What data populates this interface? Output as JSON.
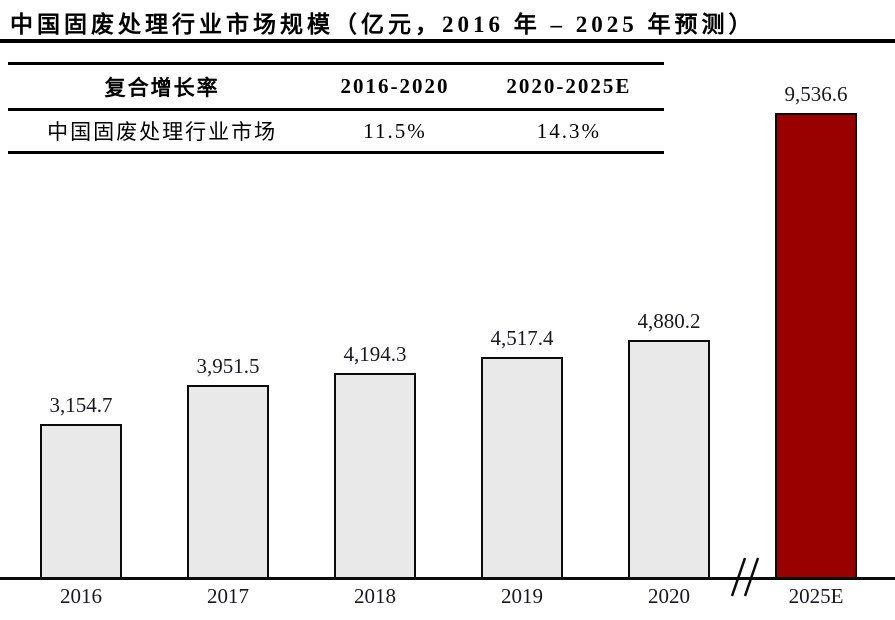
{
  "title": "中国固废处理行业市场规模（亿元，2016 年 – 2025 年预测）",
  "table": {
    "headers": [
      "复合增长率",
      "2016-2020",
      "2020-2025E"
    ],
    "rows": [
      [
        "中国固废处理行业市场",
        "11.5%",
        "14.3%"
      ]
    ]
  },
  "chart_data": {
    "type": "bar",
    "title": "中国固废处理行业市场规模（亿元，2016 年 – 2025 年预测）",
    "categories": [
      "2016",
      "2017",
      "2018",
      "2019",
      "2020",
      "2025E"
    ],
    "values": [
      3154.7,
      3951.5,
      4194.3,
      4517.4,
      4880.2,
      9536.6
    ],
    "value_labels": [
      "3,154.7",
      "3,951.5",
      "4,194.3",
      "4,517.4",
      "4,880.2",
      "9,536.6"
    ],
    "bar_colors": [
      "#e9e9e9",
      "#e9e9e9",
      "#e9e9e9",
      "#e9e9e9",
      "#e9e9e9",
      "#990000"
    ],
    "xlabel": "",
    "ylabel": "",
    "ylim": [
      0,
      9800
    ],
    "grid": false,
    "legend": "none",
    "axis_break_between": [
      "2020",
      "2025E"
    ],
    "cagr_2016_2020": "11.5%",
    "cagr_2020_2025e": "14.3%"
  },
  "colors": {
    "bar_fill": "#e9e9e9",
    "bar_highlight": "#990000",
    "line": "#000000"
  }
}
